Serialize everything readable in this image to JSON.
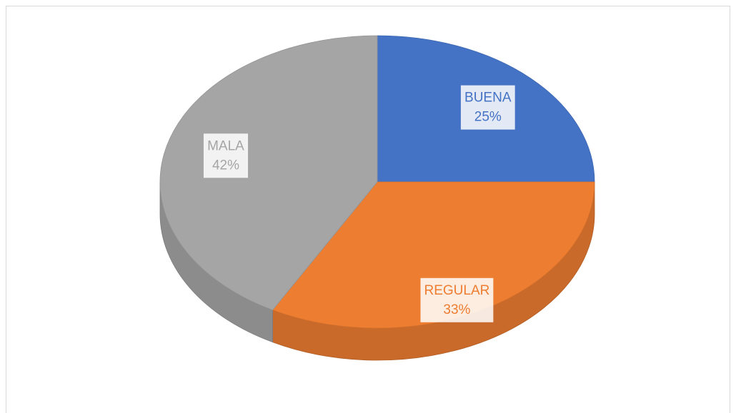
{
  "chart_data": {
    "type": "pie",
    "categories": [
      "BUENA",
      "REGULAR",
      "MALA"
    ],
    "values": [
      25,
      33,
      42
    ],
    "value_labels": [
      "25%",
      "33%",
      "42%"
    ],
    "colors": [
      "#4472c4",
      "#ed7d31",
      "#a5a5a5"
    ]
  }
}
